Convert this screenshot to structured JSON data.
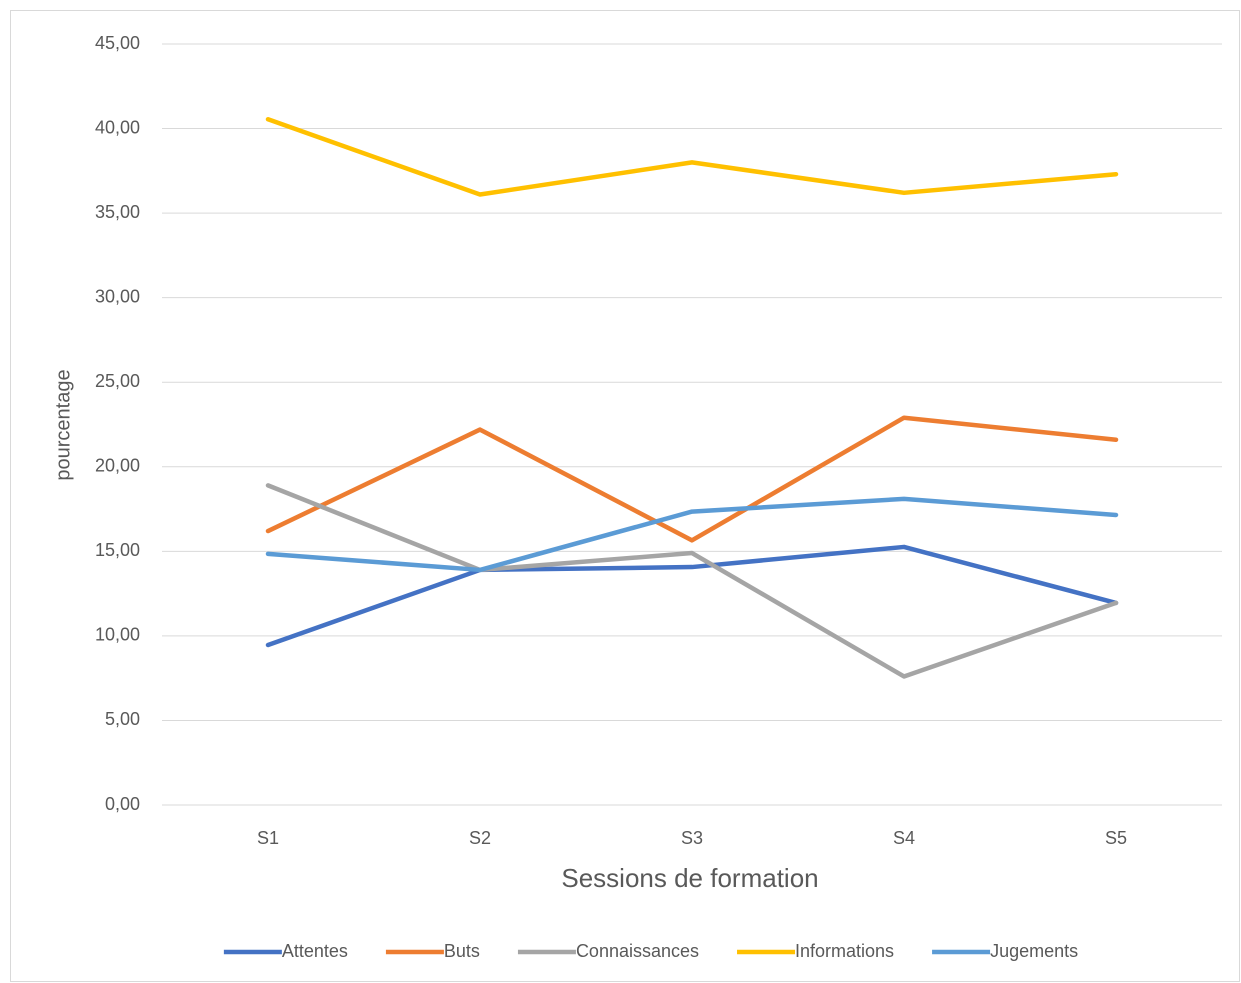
{
  "chart_data": {
    "type": "line",
    "x_label": "Sessions de formation",
    "y_label": "pourcentage",
    "categories": [
      "S1",
      "S2",
      "S3",
      "S4",
      "S5"
    ],
    "series": [
      {
        "name": "Attentes",
        "color": "#4472c4",
        "values": [
          9.46,
          13.9,
          14.07,
          15.26,
          11.95
        ]
      },
      {
        "name": "Buts",
        "color": "#ed7d31",
        "values": [
          16.2,
          22.2,
          15.65,
          22.9,
          21.6
        ]
      },
      {
        "name": "Connaissances",
        "color": "#a5a5a5",
        "values": [
          18.9,
          13.9,
          14.9,
          7.6,
          11.95
        ]
      },
      {
        "name": "Informations",
        "color": "#ffc000",
        "values": [
          40.55,
          36.1,
          38.0,
          36.2,
          37.3
        ]
      },
      {
        "name": "Jugements",
        "color": "#5b9bd5",
        "values": [
          14.85,
          13.9,
          17.35,
          18.1,
          17.15
        ]
      }
    ],
    "ylim": [
      0,
      45
    ],
    "yticks": [
      {
        "value": 0,
        "label": "0,00"
      },
      {
        "value": 5,
        "label": "5,00"
      },
      {
        "value": 10,
        "label": "10,00"
      },
      {
        "value": 15,
        "label": "15,00"
      },
      {
        "value": 20,
        "label": "20,00"
      },
      {
        "value": 25,
        "label": "25,00"
      },
      {
        "value": 30,
        "label": "30,00"
      },
      {
        "value": 35,
        "label": "35,00"
      },
      {
        "value": 40,
        "label": "40,00"
      },
      {
        "value": 45,
        "label": "45,00"
      }
    ],
    "grid": true,
    "legend": "bottom"
  }
}
